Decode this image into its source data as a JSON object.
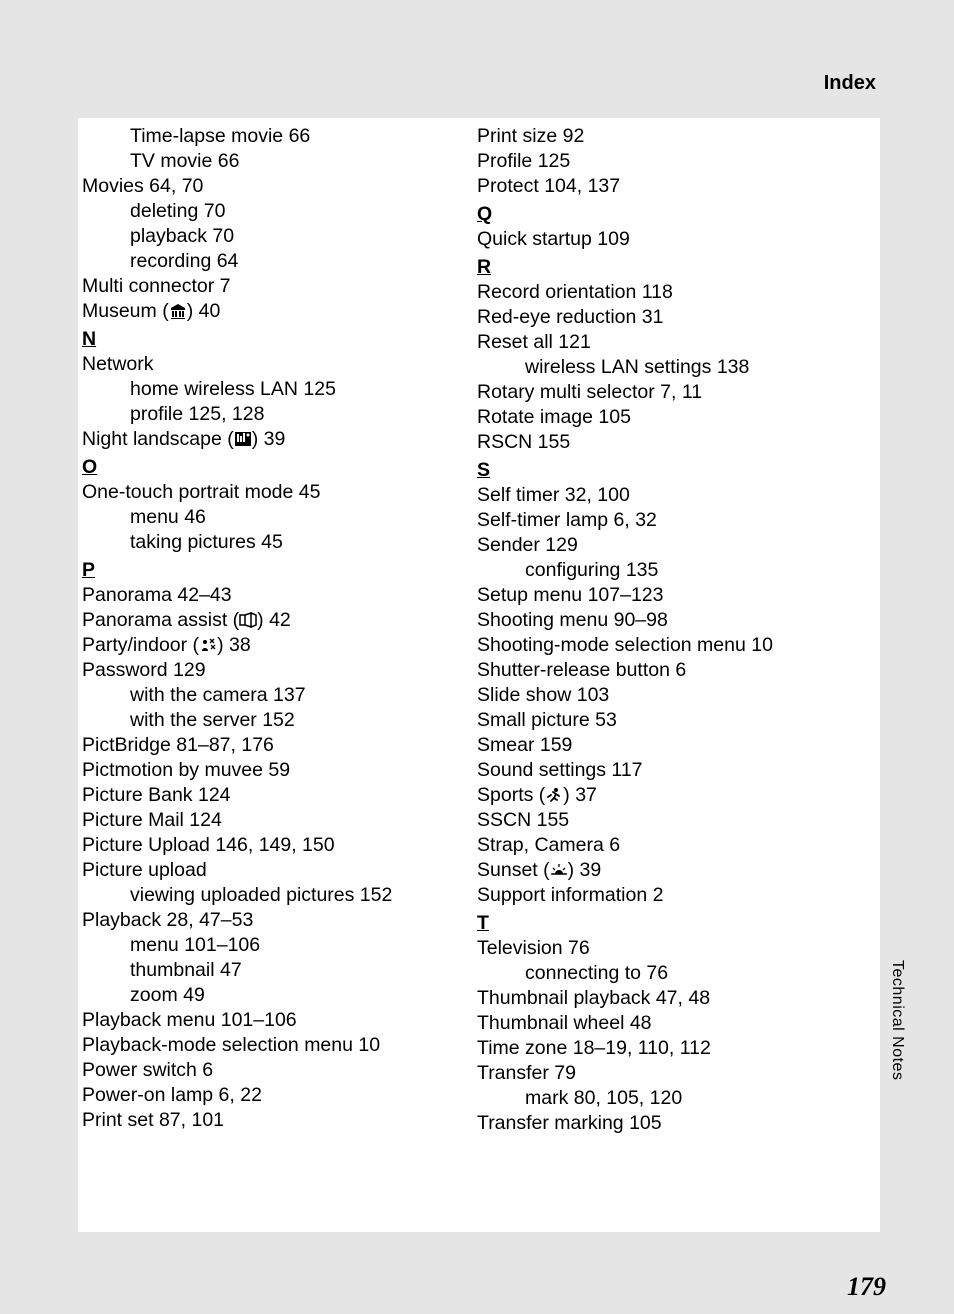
{
  "header": {
    "title": "Index"
  },
  "side": {
    "label": "Technical Notes"
  },
  "page": {
    "number": "179"
  },
  "left": {
    "lines": [
      {
        "cls": "sub-entry",
        "text": "Time-lapse movie 66"
      },
      {
        "cls": "sub-entry",
        "text": "TV movie 66"
      },
      {
        "cls": "entry",
        "text": "Movies 64, 70"
      },
      {
        "cls": "sub-entry",
        "text": "deleting 70"
      },
      {
        "cls": "sub-entry",
        "text": "playback 70"
      },
      {
        "cls": "sub-entry",
        "text": "recording 64"
      },
      {
        "cls": "entry",
        "text": "Multi connector 7"
      },
      {
        "cls": "entry",
        "text": "Museum (",
        "icon": "museum",
        "after": ") 40"
      },
      {
        "cls": "section-letter",
        "text": "N"
      },
      {
        "cls": "entry",
        "text": "Network"
      },
      {
        "cls": "sub-entry",
        "text": "home wireless LAN 125"
      },
      {
        "cls": "sub-entry",
        "text": "profile 125, 128"
      },
      {
        "cls": "entry",
        "text": "Night landscape (",
        "icon": "nightlandscape",
        "after": ") 39"
      },
      {
        "cls": "section-letter",
        "text": "O"
      },
      {
        "cls": "entry",
        "text": "One-touch portrait mode 45"
      },
      {
        "cls": "sub-entry",
        "text": "menu 46"
      },
      {
        "cls": "sub-entry",
        "text": "taking pictures 45"
      },
      {
        "cls": "section-letter",
        "text": "P"
      },
      {
        "cls": "entry",
        "text": "Panorama 42–43"
      },
      {
        "cls": "entry",
        "text": "Panorama assist (",
        "icon": "panorama",
        "after": ") 42"
      },
      {
        "cls": "entry",
        "text": "Party/indoor (",
        "icon": "party",
        "after": ") 38"
      },
      {
        "cls": "entry",
        "text": "Password 129"
      },
      {
        "cls": "sub-entry",
        "text": "with the camera 137"
      },
      {
        "cls": "sub-entry",
        "text": "with the server 152"
      },
      {
        "cls": "entry",
        "text": "PictBridge 81–87, 176"
      },
      {
        "cls": "entry",
        "text": "Pictmotion by muvee 59"
      },
      {
        "cls": "entry",
        "text": "Picture Bank 124"
      },
      {
        "cls": "entry",
        "text": "Picture Mail 124"
      },
      {
        "cls": "entry",
        "text": "Picture Upload 146, 149, 150"
      },
      {
        "cls": "entry",
        "text": "Picture upload"
      },
      {
        "cls": "sub-entry",
        "text": "viewing uploaded pictures 152"
      },
      {
        "cls": "entry",
        "text": "Playback 28, 47–53"
      },
      {
        "cls": "sub-entry",
        "text": "menu 101–106"
      },
      {
        "cls": "sub-entry",
        "text": "thumbnail 47"
      },
      {
        "cls": "sub-entry",
        "text": "zoom 49"
      },
      {
        "cls": "entry",
        "text": "Playback menu 101–106"
      },
      {
        "cls": "entry",
        "text": "Playback-mode selection menu 10"
      },
      {
        "cls": "entry",
        "text": "Power switch 6"
      },
      {
        "cls": "entry",
        "text": "Power-on lamp 6, 22"
      },
      {
        "cls": "entry",
        "text": "Print set 87, 101"
      }
    ]
  },
  "right": {
    "lines": [
      {
        "cls": "entry",
        "text": "Print size 92"
      },
      {
        "cls": "entry",
        "text": "Profile 125"
      },
      {
        "cls": "entry",
        "text": "Protect 104, 137"
      },
      {
        "cls": "section-letter",
        "text": "Q"
      },
      {
        "cls": "entry",
        "text": "Quick startup 109"
      },
      {
        "cls": "section-letter",
        "text": "R"
      },
      {
        "cls": "entry",
        "text": "Record orientation 118"
      },
      {
        "cls": "entry",
        "text": "Red-eye reduction 31"
      },
      {
        "cls": "entry",
        "text": "Reset all 121"
      },
      {
        "cls": "sub-entry",
        "text": "wireless LAN settings 138"
      },
      {
        "cls": "entry",
        "text": "Rotary multi selector 7, 11"
      },
      {
        "cls": "entry",
        "text": "Rotate image 105"
      },
      {
        "cls": "entry",
        "text": "RSCN 155"
      },
      {
        "cls": "section-letter",
        "text": "S"
      },
      {
        "cls": "entry",
        "text": "Self timer 32, 100"
      },
      {
        "cls": "entry",
        "text": "Self-timer lamp 6, 32"
      },
      {
        "cls": "entry",
        "text": "Sender 129"
      },
      {
        "cls": "sub-entry",
        "text": "configuring 135"
      },
      {
        "cls": "entry",
        "text": "Setup menu 107–123"
      },
      {
        "cls": "entry",
        "text": "Shooting menu 90–98"
      },
      {
        "cls": "entry",
        "text": "Shooting-mode selection menu 10"
      },
      {
        "cls": "entry",
        "text": "Shutter-release button 6"
      },
      {
        "cls": "entry",
        "text": "Slide show 103"
      },
      {
        "cls": "entry",
        "text": "Small picture 53"
      },
      {
        "cls": "entry",
        "text": "Smear 159"
      },
      {
        "cls": "entry",
        "text": "Sound settings 117"
      },
      {
        "cls": "entry",
        "text": "Sports (",
        "icon": "sports",
        "after": ") 37"
      },
      {
        "cls": "entry",
        "text": "SSCN 155"
      },
      {
        "cls": "entry",
        "text": "Strap, Camera 6"
      },
      {
        "cls": "entry",
        "text": "Sunset (",
        "icon": "sunset",
        "after": ") 39"
      },
      {
        "cls": "entry",
        "text": "Support information 2"
      },
      {
        "cls": "section-letter",
        "text": "T"
      },
      {
        "cls": "entry",
        "text": "Television 76"
      },
      {
        "cls": "sub-entry",
        "text": "connecting to 76"
      },
      {
        "cls": "entry",
        "text": "Thumbnail playback 47, 48"
      },
      {
        "cls": "entry",
        "text": "Thumbnail wheel 48"
      },
      {
        "cls": "entry",
        "text": "Time zone 18–19, 110, 112"
      },
      {
        "cls": "entry",
        "text": "Transfer 79"
      },
      {
        "cls": "sub-entry",
        "text": "mark 80, 105, 120"
      },
      {
        "cls": "entry",
        "text": "Transfer marking 105"
      }
    ]
  },
  "icons": {
    "museum": "<svg class='icon-svg' viewBox='0 0 18 16'><path d='M2 5 L9 1 L16 5 L16 7 L2 7 Z M3 8 L5 8 L5 14 L3 14 Z M6 8 L8 8 L8 14 L6 14 Z M10 8 L12 8 L12 14 L10 14 Z M13 8 L15 8 L15 14 L13 14 Z M2 15 L16 15 L16 16 L2 16 Z' fill='black'/></svg>",
    "nightlandscape": "<svg class='icon-svg' viewBox='0 0 18 16'><rect x='1' y='1' width='16' height='14' fill='black'/><rect x='3' y='3' width='2' height='8' fill='white'/><rect x='6' y='5' width='2' height='6' fill='white'/><rect x='9' y='2' width='2' height='9' fill='white'/><circle cx='14' cy='4' r='1.5' fill='white'/></svg>",
    "panorama": "<svg class='icon-svg' viewBox='0 0 18 16'><path d='M1 3 L1 13 L6 13 L6 3 Z M6 3 L12 1 L12 15 L6 13 Z M12 1 L17 3 L17 13 L12 15 Z' fill='none' stroke='black' stroke-width='1.5'/></svg>",
    "party": "<svg class='icon-svg' viewBox='0 0 18 16'><circle cx='6' cy='5' r='2' fill='black'/><path d='M3 14 C3 10 9 10 9 14 Z' fill='black'/><path d='M11 2 L13 4 L15 2 M11 6 L13 4 M15 6 L13 4 M12 8 L14 10 L16 8 M12 12 L14 10 M16 12 L14 10' stroke='black' stroke-width='1.3' fill='none'/></svg>",
    "sports": "<svg class='icon-svg' viewBox='0 0 18 16'><circle cx='11' cy='3' r='2' fill='black'/><path d='M8 5 L11 7 L9 11 L6 14 M11 7 L14 9 M9 11 L12 13 M6 8 L3 10' stroke='black' stroke-width='1.8' fill='none' stroke-linecap='round'/></svg>",
    "sunset": "<svg class='icon-svg' viewBox='0 0 18 16'><path d='M2 12 L16 12' stroke='black' stroke-width='1.5'/><path d='M5 12 A4 4 0 0 1 13 12 Z' fill='black'/><path d='M9 2 L9 5 M3 6 L5 8 M15 6 L13 8 M1 12 L3 12 M15 12 L17 12' stroke='black' stroke-width='1.3'/></svg>"
  }
}
